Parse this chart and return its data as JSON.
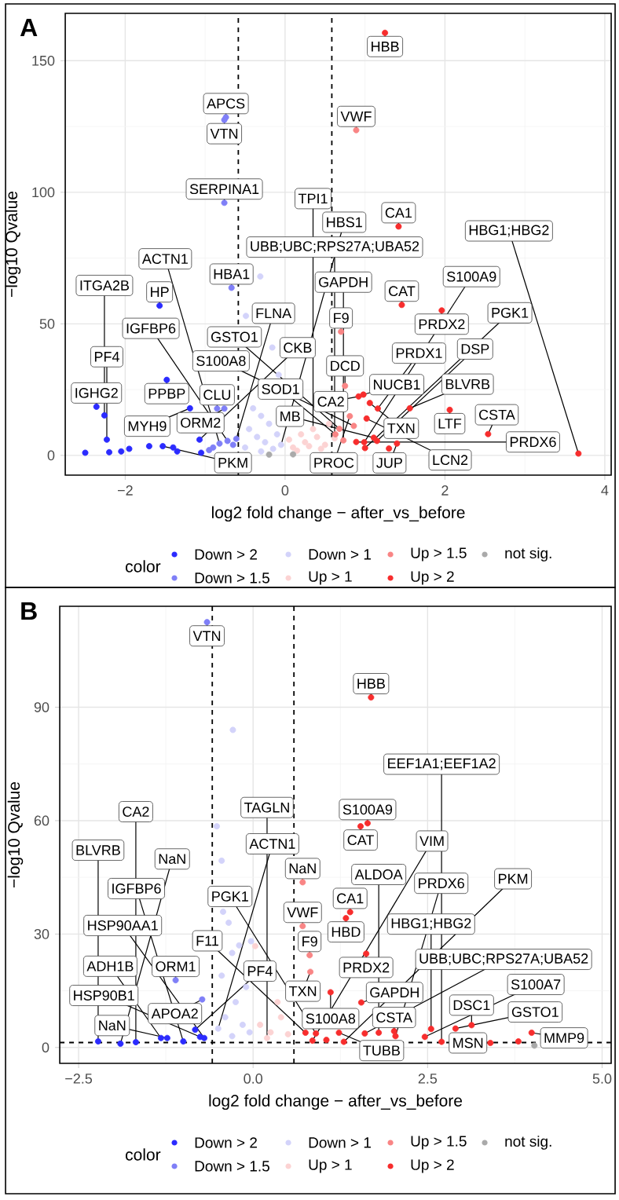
{
  "chart_data": [
    {
      "type": "scatter",
      "title": "A",
      "xlabel": "log2 fold change − after_vs_before",
      "ylabel": "−log10 Qvalue",
      "legend_title": "color",
      "legend": "bottom",
      "grid": true,
      "marker": "circle",
      "xlim": [
        -2.75,
        4.08
      ],
      "ylim": [
        -7.5,
        168
      ],
      "xticks": [
        {
          "value": -2,
          "label": "−2"
        },
        0,
        2,
        4
      ],
      "yticks": [
        0,
        50,
        100,
        150
      ],
      "ref_lines": [
        {
          "axis": "x",
          "value": -0.585,
          "color": "#000000",
          "line_style": "dashed"
        },
        {
          "axis": "x",
          "value": 0.585,
          "color": "#000000",
          "line_style": "dashed"
        }
      ],
      "series": [
        {
          "name": "Down > 2",
          "color": "#2b2bff",
          "x": [
            -1.57,
            -2.36,
            -2.26,
            -2.23,
            -1.48,
            -1.19,
            -1.07,
            -1.7,
            -1.53,
            -1.4,
            -1.95,
            -2.2,
            -2.05,
            -1.35,
            -2.5,
            -1.05
          ],
          "values": [
            56.9,
            18.5,
            15.2,
            6.0,
            28.7,
            17.9,
            6.0,
            3.5,
            3.5,
            3.0,
            2.5,
            1.2,
            1.5,
            1.5,
            1.0,
            1.0
          ]
        },
        {
          "name": "Down > 1.5",
          "color": "#7f7ff7",
          "x": [
            -0.74,
            -0.76,
            -0.76,
            -0.67,
            -0.85,
            -0.76,
            -0.72,
            -0.61,
            -0.82,
            -0.65,
            -0.9,
            -0.95
          ],
          "values": [
            128.5,
            127.5,
            96,
            63.7,
            17.8,
            17.8,
            5.5,
            6.3,
            4.5,
            4.0,
            3.0,
            2.0
          ]
        },
        {
          "name": "Down > 1",
          "color": "#d3d3fa",
          "x": [
            -0.31,
            -0.49,
            -0.16,
            -0.08,
            -0.4,
            -0.3,
            -0.2,
            -0.45,
            -0.1,
            -0.35,
            -0.25,
            -0.05,
            -0.5,
            -0.15,
            -0.3
          ],
          "values": [
            68,
            53,
            41,
            30.6,
            17.9,
            15,
            12,
            10,
            8,
            7,
            5,
            4,
            3,
            2.5,
            1.5
          ]
        },
        {
          "name": "Up > 1",
          "color": "#fcd3d3",
          "x": [
            0.62,
            0.1,
            0.25,
            0.4,
            0.5,
            0.2,
            0.35,
            0.45,
            0.15,
            0.55,
            0.3,
            0.05
          ],
          "values": [
            6.5,
            3,
            5,
            7,
            4,
            8,
            10,
            2.5,
            1.8,
            12,
            3.5,
            6
          ]
        },
        {
          "name": "Up > 1.5",
          "color": "#f98585",
          "x": [
            0.89,
            0.75,
            0.81,
            0.86,
            0.68,
            0.73,
            0.63,
            0.7
          ],
          "values": [
            123.6,
            26.4,
            14.9,
            11.2,
            10.1,
            5.7,
            8.0,
            47.0
          ]
        },
        {
          "name": "Up > 2",
          "color": "#f72d2d",
          "x": [
            1.25,
            1.42,
            1.46,
            1.96,
            0.92,
            0.98,
            1.06,
            1.16,
            1.56,
            2.06,
            1.02,
            2.54,
            1.11,
            1.4,
            0.89,
            0.99,
            1.0,
            1.3,
            1.15,
            3.67
          ],
          "values": [
            160.6,
            87,
            57.2,
            55.1,
            22.4,
            23.1,
            19.9,
            17.8,
            17.9,
            17.3,
            14,
            8.1,
            6.7,
            4.5,
            5.1,
            5.0,
            2.8,
            2.6,
            5.5,
            0.7
          ]
        },
        {
          "name": "not sig.",
          "color": "#aaaaaa",
          "x": [
            0.1,
            -0.2
          ],
          "values": [
            0.4,
            0.3
          ]
        }
      ],
      "annotations": [
        {
          "text": "HBB",
          "x": 1.25,
          "y": 160.6
        },
        {
          "text": "APCS",
          "x": -0.74,
          "y": 128.5
        },
        {
          "text": "VTN",
          "x": -0.76,
          "y": 127.5
        },
        {
          "text": "VWF",
          "x": 0.89,
          "y": 123.6
        },
        {
          "text": "SERPINA1",
          "x": -0.76,
          "y": 96
        },
        {
          "text": "CA1",
          "x": 1.42,
          "y": 87
        },
        {
          "text": "HP",
          "x": -1.57,
          "y": 56.9
        },
        {
          "text": "HBA1",
          "x": -0.67,
          "y": 63.7
        },
        {
          "text": "CAT",
          "x": 1.46,
          "y": 57.2
        },
        {
          "text": "PRDX2",
          "x": 1.96,
          "y": 55.1
        },
        {
          "text": "F9",
          "x": 0.7,
          "y": 47.0
        },
        {
          "text": "PPBP",
          "x": -1.48,
          "y": 28.7
        },
        {
          "text": "DCD",
          "x": 0.75,
          "y": 26.4
        },
        {
          "text": "IGHG2",
          "x": -2.36,
          "y": 18.5
        },
        {
          "text": "CLU",
          "x": -0.85,
          "y": 17.8
        },
        {
          "text": "ORM2",
          "x": -0.76,
          "y": 17.8
        },
        {
          "text": "MYH9",
          "x": -1.19,
          "y": 17.9
        },
        {
          "text": "CA2",
          "x": 0.92,
          "y": 22.4
        },
        {
          "text": "NUCB1",
          "x": 0.98,
          "y": 23.1
        },
        {
          "text": "TXN",
          "x": 1.06,
          "y": 19.9
        },
        {
          "text": "PRDX1",
          "x": 1.16,
          "y": 17.8
        },
        {
          "text": "BLVRB",
          "x": 1.56,
          "y": 17.9
        },
        {
          "text": "LTF",
          "x": 2.06,
          "y": 17.3
        },
        {
          "text": "PROC",
          "x": 0.81,
          "y": 14.9
        },
        {
          "text": "LCN2",
          "x": 1.02,
          "y": 14
        },
        {
          "text": "S100A8",
          "x": 0.86,
          "y": 11.2
        },
        {
          "text": "GSTO1",
          "x": 0.68,
          "y": 10.1
        },
        {
          "text": "CSTA",
          "x": 2.54,
          "y": 8.1
        },
        {
          "text": "SOD1",
          "x": 0.63,
          "y": 8.0
        },
        {
          "text": "MB",
          "x": 1.11,
          "y": 6.7
        },
        {
          "text": "UBB;UBC;RPS27A;UBA52",
          "x": 0.62,
          "y": 6.5
        },
        {
          "text": "GAPDH",
          "x": 0.73,
          "y": 5.7
        },
        {
          "text": "PF4",
          "x": -2.23,
          "y": 6.0
        },
        {
          "text": "IGFBP6",
          "x": -0.72,
          "y": 5.5
        },
        {
          "text": "FLNA",
          "x": -0.61,
          "y": 6.3
        },
        {
          "text": "PRDX6",
          "x": 0.89,
          "y": 5.1
        },
        {
          "text": "DSP",
          "x": 1.15,
          "y": 5.5
        },
        {
          "text": "JUP",
          "x": 1.4,
          "y": 4.5
        },
        {
          "text": "S100A9",
          "x": 0.99,
          "y": 5.0
        },
        {
          "text": "PGK1",
          "x": 1.0,
          "y": 2.8
        },
        {
          "text": "HBG1;HBG2",
          "x": 3.67,
          "y": 0.7
        },
        {
          "text": "TPI1",
          "x": 0.35,
          "y": 10
        },
        {
          "text": "HBS1",
          "x": -0.05,
          "y": 4
        },
        {
          "text": "ACTN1",
          "x": -0.82,
          "y": 4.5
        },
        {
          "text": "CKB",
          "x": -1.07,
          "y": 6.0
        },
        {
          "text": "PKM",
          "x": -1.53,
          "y": 3.5
        },
        {
          "text": "ITGA2B",
          "x": -2.26,
          "y": 15.2
        }
      ]
    },
    {
      "type": "scatter",
      "title": "B",
      "xlabel": "log2 fold change − after_vs_before",
      "ylabel": "−log10 Qvalue",
      "legend_title": "color",
      "legend": "bottom",
      "grid": true,
      "marker": "circle",
      "xlim": [
        -2.77,
        5.13
      ],
      "ylim": [
        -4.2,
        116.7
      ],
      "xticks": [
        {
          "value": -2.5,
          "label": "−2.5"
        },
        {
          "value": 0,
          "label": "0.0"
        },
        2.5,
        {
          "value": 5,
          "label": "5.0"
        }
      ],
      "yticks": [
        0,
        30,
        60,
        90
      ],
      "ref_lines": [
        {
          "axis": "x",
          "value": -0.585,
          "color": "#000000",
          "line_style": "dashed"
        },
        {
          "axis": "x",
          "value": 0.585,
          "color": "#000000",
          "line_style": "dashed"
        },
        {
          "axis": "y",
          "value": 1.3,
          "color": "#000000",
          "line_style": "dashed"
        }
      ],
      "series": [
        {
          "name": "Down > 2",
          "color": "#2b2bff",
          "x": [
            -1.32,
            -1.23,
            -0.83,
            -0.76,
            -0.7,
            -2.22,
            -1.68,
            -1.9,
            -1.0
          ],
          "values": [
            2.5,
            2.5,
            4.7,
            2.8,
            2.5,
            1.6,
            1.4,
            1.0,
            1.6
          ]
        },
        {
          "name": "Down > 1.5",
          "color": "#7f7ff7",
          "x": [
            -0.66,
            -1.11,
            -0.73
          ],
          "values": [
            112.5,
            17.8,
            12.7
          ]
        },
        {
          "name": "Down > 1",
          "color": "#d3d3fa",
          "x": [
            -0.29,
            -0.52,
            -0.45,
            -0.43,
            -0.35,
            -0.03,
            -0.2,
            -0.3,
            -0.45,
            -0.1,
            -0.25,
            -0.4,
            -0.15,
            -0.05,
            -0.3,
            -0.5
          ],
          "values": [
            84.0,
            58.5,
            49.4,
            35.9,
            33,
            28.1,
            27,
            25,
            19,
            16,
            12,
            8,
            6,
            4,
            3,
            5
          ]
        },
        {
          "name": "Up > 1",
          "color": "#fcd3d3",
          "x": [
            0.03,
            0.1,
            0.25,
            0.4,
            0.2,
            0.5,
            0.35
          ],
          "values": [
            26.8,
            6,
            4,
            8,
            2.5,
            3.5,
            12
          ]
        },
        {
          "name": "Up > 1.5",
          "color": "#f98585",
          "x": [
            0.71,
            0.71,
            0.81,
            0.82
          ],
          "values": [
            43.7,
            32.1,
            24.4,
            20.0
          ]
        },
        {
          "name": "Up > 2",
          "color": "#f72d2d",
          "x": [
            1.69,
            1.64,
            1.54,
            1.39,
            1.33,
            1.62,
            1.11,
            1.55,
            2.02,
            2.04,
            1.23,
            0.9,
            1.6,
            1.8,
            2.55,
            2.46,
            3.13,
            3.99,
            2.9,
            1.05,
            0.85,
            2.7,
            3.4,
            3.8,
            0.75,
            1.3
          ],
          "values": [
            92.6,
            59.3,
            58.5,
            35.8,
            34.2,
            24.8,
            14.6,
            11.9,
            4.3,
            3.0,
            3.9,
            3.7,
            3.7,
            3.9,
            4.9,
            2.8,
            5.9,
            3.9,
            5.0,
            2.0,
            1.8,
            1.5,
            1.2,
            1.6,
            3.9,
            1.5
          ]
        },
        {
          "name": "not sig.",
          "color": "#aaaaaa",
          "x": [
            4.03
          ],
          "values": [
            0.5
          ]
        }
      ],
      "annotations": [
        {
          "text": "VTN",
          "x": -0.66,
          "y": 112.5
        },
        {
          "text": "HBB",
          "x": 1.69,
          "y": 92.6
        },
        {
          "text": "S100A9",
          "x": 1.64,
          "y": 59.3
        },
        {
          "text": "CAT",
          "x": 1.54,
          "y": 58.5
        },
        {
          "text": "NaN",
          "x": 0.71,
          "y": 43.7
        },
        {
          "text": "CA1",
          "x": 1.39,
          "y": 35.8
        },
        {
          "text": "HBD",
          "x": 1.33,
          "y": 34.2
        },
        {
          "text": "VWF",
          "x": 0.71,
          "y": 32.1
        },
        {
          "text": "PRDX2",
          "x": 1.62,
          "y": 24.8
        },
        {
          "text": "F9",
          "x": 0.81,
          "y": 24.4
        },
        {
          "text": "TXN",
          "x": 0.82,
          "y": 20.0
        },
        {
          "text": "ORM1",
          "x": -1.11,
          "y": 17.8
        },
        {
          "text": "S100A8",
          "x": 1.11,
          "y": 14.6
        },
        {
          "text": "APOA2",
          "x": -0.73,
          "y": 12.7
        },
        {
          "text": "GAPDH",
          "x": 1.55,
          "y": 11.9
        },
        {
          "text": "UBB;UBC;RPS27A;UBA52",
          "x": 1.6,
          "y": 3.7
        },
        {
          "text": "DSC1",
          "x": 3.13,
          "y": 5.9
        },
        {
          "text": "GSTO1",
          "x": 2.9,
          "y": 5.0
        },
        {
          "text": "HBG1;HBG2",
          "x": 2.55,
          "y": 4.9
        },
        {
          "text": "PF4",
          "x": -0.83,
          "y": 4.7
        },
        {
          "text": "CSTA",
          "x": 2.02,
          "y": 4.3
        },
        {
          "text": "MMP9",
          "x": 3.99,
          "y": 3.9
        },
        {
          "text": "TUBB",
          "x": 1.23,
          "y": 3.9
        },
        {
          "text": "ALDOA",
          "x": 1.8,
          "y": 3.9
        },
        {
          "text": "F11",
          "x": 0.75,
          "y": 3.9
        },
        {
          "text": "PGK1",
          "x": 0.9,
          "y": 3.7
        },
        {
          "text": "PRDX6",
          "x": 2.04,
          "y": 3.0
        },
        {
          "text": "S100A7",
          "x": 2.46,
          "y": 2.8
        },
        {
          "text": "HSP90B1",
          "x": -0.76,
          "y": 2.8
        },
        {
          "text": "HSP90AA1",
          "x": -0.7,
          "y": 2.5
        },
        {
          "text": "NaN",
          "x": -1.23,
          "y": 2.5
        },
        {
          "text": "IGFBP6",
          "x": -1.0,
          "y": 1.6
        },
        {
          "text": "ADH1B",
          "x": -1.32,
          "y": 2.5
        },
        {
          "text": "BLVRB",
          "x": -2.22,
          "y": 1.6
        },
        {
          "text": "NaN",
          "x": -1.9,
          "y": 1.0
        },
        {
          "text": "CA2",
          "x": -1.68,
          "y": 1.4
        },
        {
          "text": "ACTN1",
          "x": -0.5,
          "y": 5
        },
        {
          "text": "TAGLN",
          "x": 0.2,
          "y": 2.5
        },
        {
          "text": "VIM",
          "x": 0.85,
          "y": 1.8
        },
        {
          "text": "PKM",
          "x": 1.3,
          "y": 1.5
        },
        {
          "text": "EEF1A1;EEF1A2",
          "x": 2.7,
          "y": 1.5
        },
        {
          "text": "MSN",
          "x": 3.4,
          "y": 1.2
        }
      ]
    }
  ]
}
